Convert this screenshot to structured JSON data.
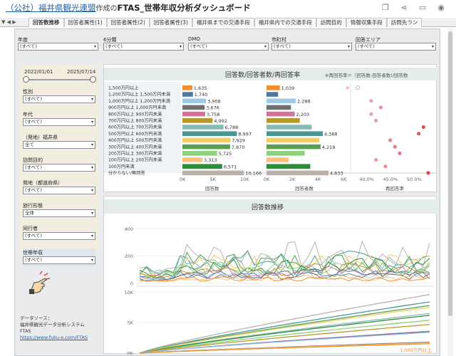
{
  "header": {
    "org": "（公社）福井県観光連盟",
    "middle": "作成の",
    "title": "FTAS_世帯年収分析ダッシュボード"
  },
  "tabs": [
    "回答数推移",
    "回答者属性(1)",
    "回答者属性(2)",
    "回答者属性(3)",
    "福井県までの交通手段",
    "福井県内での交通手段",
    "訪問目的",
    "情報収集手段",
    "訪問先ラン"
  ],
  "top_filters": [
    {
      "label": "年度",
      "value": "(すべて)"
    },
    {
      "label": "6分類",
      "value": "(すべて)"
    },
    {
      "label": "DMO",
      "value": "(すべて)"
    },
    {
      "label": "市町村",
      "value": "(すべて)"
    },
    {
      "label": "回答エリア",
      "value": "(すべて)"
    }
  ],
  "left": {
    "date_start": "2022/01/01",
    "date_end": "2025/07/14",
    "filters": [
      {
        "label": "性別",
        "value": "(すべて)"
      },
      {
        "label": "年代",
        "value": "(すべて)"
      },
      {
        "label": "（発地）福井県",
        "value": "全て"
      },
      {
        "label": "訪問目的",
        "value": "(すべて)"
      },
      {
        "label": "発地（都道府県）",
        "value": "(すべて)"
      },
      {
        "label": "旅行形態",
        "value": "全体"
      },
      {
        "label": "同行者",
        "value": "(すべて)"
      }
    ],
    "year_filter": {
      "label": "世帯年収",
      "value": "(すべて)"
    },
    "source_lines": [
      "データソース：",
      "福井県観光データ分析システム",
      "FTAS"
    ],
    "source_url": "https://www.fuku-e.com/FTAS"
  },
  "summary": {
    "title": "回答数/回答者数/再回答率",
    "note": "※再回答率＝（回答数-回答者数)/回答数",
    "rows": [
      {
        "label": "1,500万円以上",
        "answers": 1635,
        "answers_text": "1,635",
        "respondents": 1039,
        "respondents_text": "1,039",
        "rate": 0.36,
        "color": "#f28e2b"
      },
      {
        "label": "1,200万円以上 1,500万円未満",
        "answers": 1740,
        "answers_text": "1,740",
        "respondents": null,
        "respondents_text": "",
        "rate": null,
        "color": "#4e79a7"
      },
      {
        "label": "1,000万円以上 1,200万円未満",
        "answers": 3908,
        "answers_text": "3,908",
        "respondents": 2288,
        "respondents_text": "2,288",
        "rate": 0.41,
        "color": "#a0cbe8"
      },
      {
        "label": "900万円以上 1,000万円未満",
        "answers": 3676,
        "answers_text": "3,676",
        "respondents": null,
        "respondents_text": "",
        "rate": 0.43,
        "color": "#6f6f6f"
      },
      {
        "label": "800万円以上 900万円未満",
        "answers": 3758,
        "answers_text": "3,758",
        "respondents": 2203,
        "respondents_text": "2,203",
        "rate": 0.41,
        "color": "#d37295"
      },
      {
        "label": "700万円以上 800万円未満",
        "answers": 4992,
        "answers_text": "4,992",
        "respondents": null,
        "respondents_text": "",
        "rate": 0.42,
        "color": "#b6992d"
      },
      {
        "label": "600万円以上 700万円未満",
        "answers": 6788,
        "answers_text": "6,788",
        "respondents": null,
        "respondents_text": "",
        "rate": 0.52,
        "color": "#86bcb6"
      },
      {
        "label": "500万円以上 600万円未満",
        "answers": 8997,
        "answers_text": "8,997",
        "respondents": 4388,
        "respondents_text": "4,388",
        "rate": 0.51,
        "color": "#499894"
      },
      {
        "label": "400万円以上 500万円未満",
        "answers": 7929,
        "answers_text": "7,929",
        "respondents": null,
        "respondents_text": "",
        "rate": 0.45,
        "color": "#f1ce63"
      },
      {
        "label": "300万円以上 400万円未満",
        "answers": 7870,
        "answers_text": "7,870",
        "respondents": 4218,
        "respondents_text": "4,218",
        "rate": 0.46,
        "color": "#59a14f"
      },
      {
        "label": "200万円以上 300万円未満",
        "answers": 5725,
        "answers_text": "5,725",
        "respondents": null,
        "respondents_text": "",
        "rate": 0.47,
        "color": "#8cd17d"
      },
      {
        "label": "100万円以上 200万円未満",
        "answers": 3313,
        "answers_text": "3,313",
        "respondents": null,
        "respondents_text": "",
        "rate": 0.42,
        "color": "#ffbe7d"
      },
      {
        "label": "100万円未満",
        "answers": 6571,
        "answers_text": "6,571",
        "respondents": null,
        "respondents_text": "",
        "rate": 0.44,
        "color": "#2e8b3c"
      },
      {
        "label": "分からない/無回答",
        "answers": 10166,
        "answers_text": "10,166",
        "respondents": 4833,
        "respondents_text": "4,833",
        "rate": 0.53,
        "color": "#bab0ac"
      }
    ],
    "axis1": {
      "ticks": [
        "0K",
        "5K",
        "10K"
      ],
      "max": 10000,
      "label": "回答数"
    },
    "axis2": {
      "ticks": [
        "0K",
        "2K",
        "4K",
        "6K"
      ],
      "max": 6000,
      "label": "回答者数"
    },
    "axis3": {
      "ticks": [
        "40.0%",
        "45.0%",
        "50.0%"
      ],
      "min": 0.38,
      "max": 0.53,
      "label": "再回答率"
    }
  },
  "trend": {
    "title": "回答数推移",
    "top_axis": {
      "ticks": [
        "400",
        "200",
        "0"
      ],
      "max": 480
    },
    "bottom_axis": {
      "ticks": [
        "10K",
        "5K",
        "0K"
      ],
      "max": 10500
    },
    "end_label": "1,500万円以上",
    "colors": [
      "#bab0ac",
      "#499894",
      "#59a14f",
      "#f1ce63",
      "#86bcb6",
      "#2e8b3c",
      "#8cd17d",
      "#b6992d",
      "#d37295",
      "#4e79a7",
      "#a0cbe8",
      "#6f6f6f",
      "#ffbe7d",
      "#f28e2b"
    ]
  },
  "chart_data": [
    {
      "type": "bar",
      "title": "回答数/回答者数/再回答率",
      "categories": [
        "1,500万円以上",
        "1,200万円以上 1,500万円未満",
        "1,000万円以上 1,200万円未満",
        "900万円以上 1,000万円未満",
        "800万円以上 900万円未満",
        "700万円以上 800万円未満",
        "600万円以上 700万円未満",
        "500万円以上 600万円未満",
        "400万円以上 500万円未満",
        "300万円以上 400万円未満",
        "200万円以上 300万円未満",
        "100万円以上 200万円未満",
        "100万円未満",
        "分からない/無回答"
      ],
      "series": [
        {
          "name": "回答数",
          "values": [
            1635,
            1740,
            3908,
            3676,
            3758,
            4992,
            6788,
            8997,
            7929,
            7870,
            5725,
            3313,
            6571,
            10166
          ]
        },
        {
          "name": "回答者数",
          "values": [
            1039,
            null,
            2288,
            null,
            2203,
            null,
            null,
            4388,
            null,
            4218,
            null,
            null,
            null,
            4833
          ]
        }
      ]
    },
    {
      "type": "line",
      "title": "回答数推移",
      "series": [
        {
          "name": "1,500万円以上",
          "values": []
        }
      ]
    }
  ]
}
